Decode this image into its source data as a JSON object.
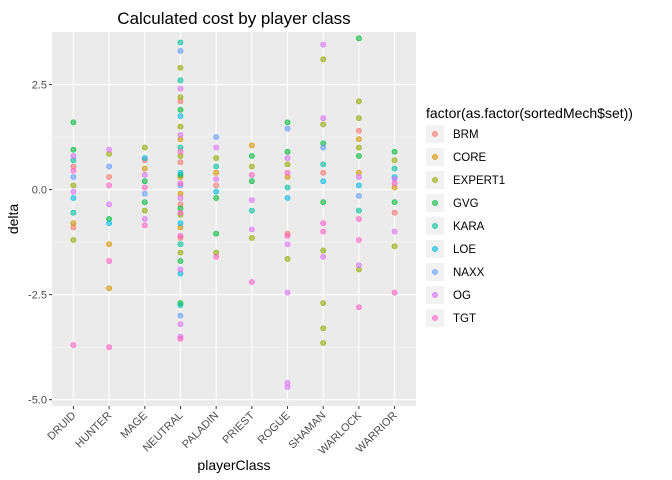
{
  "chart_data": {
    "type": "scatter",
    "title": "Calculated cost by player class",
    "xlabel": "playerClass",
    "ylabel": "delta",
    "categories": [
      "DRUID",
      "HUNTER",
      "MAGE",
      "NEUTRAL",
      "PALADIN",
      "PRIEST",
      "ROGUE",
      "SHAMAN",
      "WARLOCK",
      "WARRIOR"
    ],
    "y_ticks": [
      "2.5",
      "0.0",
      "-2.5",
      "-5.0"
    ],
    "ylim": [
      -5.15,
      3.75
    ],
    "grid": true,
    "point_alpha": 0.6,
    "legend": {
      "title": "factor(as.factor(sortedMech$set))",
      "placement": "right",
      "entries": [
        {
          "name": "BRM",
          "color": "#F8766D"
        },
        {
          "name": "CORE",
          "color": "#D39200"
        },
        {
          "name": "EXPERT1",
          "color": "#93AA00"
        },
        {
          "name": "GVG",
          "color": "#00BA38"
        },
        {
          "name": "KARA",
          "color": "#00C19F"
        },
        {
          "name": "LOE",
          "color": "#00B9E3"
        },
        {
          "name": "NAXX",
          "color": "#619CFF"
        },
        {
          "name": "OG",
          "color": "#DB72FB"
        },
        {
          "name": "TGT",
          "color": "#FF61C3"
        }
      ]
    },
    "series": [
      {
        "name": "BRM",
        "points": [
          [
            "DRUID",
            0.55
          ],
          [
            "DRUID",
            -0.9
          ],
          [
            "HUNTER",
            0.3
          ],
          [
            "MAGE",
            0.7
          ],
          [
            "NEUTRAL",
            0.65
          ],
          [
            "NEUTRAL",
            -0.35
          ],
          [
            "NEUTRAL",
            -1.15
          ],
          [
            "NEUTRAL",
            2.1
          ],
          [
            "PALADIN",
            0.1
          ],
          [
            "ROGUE",
            -1.05
          ],
          [
            "SHAMAN",
            0.4
          ],
          [
            "WARLOCK",
            1.4
          ],
          [
            "WARRIOR",
            -0.55
          ]
        ]
      },
      {
        "name": "CORE",
        "points": [
          [
            "DRUID",
            -0.8
          ],
          [
            "HUNTER",
            -2.35
          ],
          [
            "HUNTER",
            -1.3
          ],
          [
            "MAGE",
            0.5
          ],
          [
            "NEUTRAL",
            1.2
          ],
          [
            "NEUTRAL",
            -0.1
          ],
          [
            "NEUTRAL",
            -0.9
          ],
          [
            "NEUTRAL",
            0.3
          ],
          [
            "PALADIN",
            0.4
          ],
          [
            "PRIEST",
            1.05
          ],
          [
            "ROGUE",
            0.3
          ],
          [
            "WARLOCK",
            1.2
          ],
          [
            "WARLOCK",
            0.4
          ],
          [
            "WARRIOR",
            0.05
          ]
        ]
      },
      {
        "name": "EXPERT1",
        "points": [
          [
            "DRUID",
            -1.2
          ],
          [
            "DRUID",
            0.1
          ],
          [
            "HUNTER",
            0.85
          ],
          [
            "MAGE",
            1.0
          ],
          [
            "MAGE",
            -0.5
          ],
          [
            "NEUTRAL",
            2.9
          ],
          [
            "NEUTRAL",
            2.2
          ],
          [
            "NEUTRAL",
            1.5
          ],
          [
            "NEUTRAL",
            0.8
          ],
          [
            "NEUTRAL",
            -0.6
          ],
          [
            "NEUTRAL",
            -1.5
          ],
          [
            "PALADIN",
            -1.5
          ],
          [
            "PALADIN",
            0.75
          ],
          [
            "PRIEST",
            0.55
          ],
          [
            "PRIEST",
            -1.15
          ],
          [
            "ROGUE",
            -1.65
          ],
          [
            "ROGUE",
            0.6
          ],
          [
            "SHAMAN",
            3.1
          ],
          [
            "SHAMAN",
            -2.7
          ],
          [
            "SHAMAN",
            -3.3
          ],
          [
            "SHAMAN",
            -3.65
          ],
          [
            "SHAMAN",
            -1.45
          ],
          [
            "SHAMAN",
            1.55
          ],
          [
            "WARLOCK",
            2.1
          ],
          [
            "WARLOCK",
            1.7
          ],
          [
            "WARLOCK",
            -1.9
          ],
          [
            "WARLOCK",
            1.0
          ],
          [
            "WARRIOR",
            -1.35
          ],
          [
            "WARRIOR",
            0.7
          ]
        ]
      },
      {
        "name": "GVG",
        "points": [
          [
            "DRUID",
            1.6
          ],
          [
            "DRUID",
            0.95
          ],
          [
            "HUNTER",
            -0.7
          ],
          [
            "MAGE",
            -0.3
          ],
          [
            "MAGE",
            0.2
          ],
          [
            "NEUTRAL",
            1.9
          ],
          [
            "NEUTRAL",
            0.35
          ],
          [
            "NEUTRAL",
            -0.45
          ],
          [
            "NEUTRAL",
            -1.7
          ],
          [
            "NEUTRAL",
            -2.7
          ],
          [
            "PALADIN",
            -0.2
          ],
          [
            "PALADIN",
            -1.05
          ],
          [
            "PRIEST",
            0.8
          ],
          [
            "PRIEST",
            0.2
          ],
          [
            "ROGUE",
            1.6
          ],
          [
            "ROGUE",
            0.9
          ],
          [
            "SHAMAN",
            1.1
          ],
          [
            "SHAMAN",
            -0.3
          ],
          [
            "WARLOCK",
            3.6
          ],
          [
            "WARLOCK",
            0.8
          ],
          [
            "WARRIOR",
            0.9
          ],
          [
            "WARRIOR",
            -0.3
          ]
        ]
      },
      {
        "name": "KARA",
        "points": [
          [
            "DRUID",
            0.7
          ],
          [
            "DRUID",
            -0.55
          ],
          [
            "NEUTRAL",
            3.5
          ],
          [
            "NEUTRAL",
            2.6
          ],
          [
            "NEUTRAL",
            1.0
          ],
          [
            "NEUTRAL",
            -1.3
          ],
          [
            "NEUTRAL",
            -2.75
          ],
          [
            "PALADIN",
            0.55
          ],
          [
            "PRIEST",
            -0.5
          ],
          [
            "ROGUE",
            0.05
          ],
          [
            "SHAMAN",
            0.6
          ],
          [
            "WARLOCK",
            -0.5
          ],
          [
            "WARRIOR",
            0.5
          ]
        ]
      },
      {
        "name": "LOE",
        "points": [
          [
            "DRUID",
            -0.2
          ],
          [
            "HUNTER",
            -0.8
          ],
          [
            "MAGE",
            0.75
          ],
          [
            "NEUTRAL",
            0.4
          ],
          [
            "NEUTRAL",
            -0.8
          ],
          [
            "NEUTRAL",
            -2.0
          ],
          [
            "NEUTRAL",
            1.75
          ],
          [
            "PALADIN",
            -0.05
          ],
          [
            "ROGUE",
            -0.2
          ],
          [
            "SHAMAN",
            0.2
          ],
          [
            "WARLOCK",
            0.1
          ],
          [
            "WARRIOR",
            0.3
          ]
        ]
      },
      {
        "name": "NAXX",
        "points": [
          [
            "DRUID",
            0.3
          ],
          [
            "HUNTER",
            0.55
          ],
          [
            "MAGE",
            -0.1
          ],
          [
            "NEUTRAL",
            0.1
          ],
          [
            "NEUTRAL",
            -3.0
          ],
          [
            "NEUTRAL",
            3.3
          ],
          [
            "PALADIN",
            1.25
          ],
          [
            "ROGUE",
            1.45
          ],
          [
            "SHAMAN",
            1.0
          ],
          [
            "WARLOCK",
            -0.15
          ]
        ]
      },
      {
        "name": "OG",
        "points": [
          [
            "DRUID",
            -0.05
          ],
          [
            "DRUID",
            0.8
          ],
          [
            "HUNTER",
            -0.35
          ],
          [
            "HUNTER",
            0.95
          ],
          [
            "MAGE",
            -0.7
          ],
          [
            "MAGE",
            0.35
          ],
          [
            "NEUTRAL",
            2.4
          ],
          [
            "NEUTRAL",
            1.3
          ],
          [
            "NEUTRAL",
            -0.2
          ],
          [
            "NEUTRAL",
            -1.9
          ],
          [
            "NEUTRAL",
            -3.2
          ],
          [
            "NEUTRAL",
            -3.5
          ],
          [
            "PALADIN",
            0.25
          ],
          [
            "PALADIN",
            1.0
          ],
          [
            "PRIEST",
            -0.25
          ],
          [
            "PRIEST",
            -0.95
          ],
          [
            "ROGUE",
            -4.6
          ],
          [
            "ROGUE",
            -4.7
          ],
          [
            "ROGUE",
            -2.45
          ],
          [
            "ROGUE",
            -1.3
          ],
          [
            "ROGUE",
            0.75
          ],
          [
            "SHAMAN",
            3.45
          ],
          [
            "SHAMAN",
            1.7
          ],
          [
            "SHAMAN",
            -1.6
          ],
          [
            "WARLOCK",
            -1.8
          ],
          [
            "WARLOCK",
            0.3
          ],
          [
            "WARRIOR",
            0.25
          ],
          [
            "WARRIOR",
            -1.0
          ]
        ]
      },
      {
        "name": "TGT",
        "points": [
          [
            "DRUID",
            -3.7
          ],
          [
            "DRUID",
            0.45
          ],
          [
            "HUNTER",
            -3.75
          ],
          [
            "HUNTER",
            -1.7
          ],
          [
            "HUNTER",
            0.1
          ],
          [
            "MAGE",
            0.05
          ],
          [
            "MAGE",
            -0.85
          ],
          [
            "NEUTRAL",
            0.9
          ],
          [
            "NEUTRAL",
            -0.55
          ],
          [
            "NEUTRAL",
            -1.1
          ],
          [
            "NEUTRAL",
            -3.55
          ],
          [
            "NEUTRAL",
            0.15
          ],
          [
            "PALADIN",
            -1.6
          ],
          [
            "PRIEST",
            -2.2
          ],
          [
            "PRIEST",
            0.35
          ],
          [
            "ROGUE",
            -1.1
          ],
          [
            "ROGUE",
            0.4
          ],
          [
            "SHAMAN",
            -0.8
          ],
          [
            "SHAMAN",
            -1.0
          ],
          [
            "WARLOCK",
            -2.8
          ],
          [
            "WARLOCK",
            -1.2
          ],
          [
            "WARLOCK",
            -0.7
          ],
          [
            "WARRIOR",
            -2.45
          ],
          [
            "WARRIOR",
            0.15
          ]
        ]
      }
    ]
  }
}
